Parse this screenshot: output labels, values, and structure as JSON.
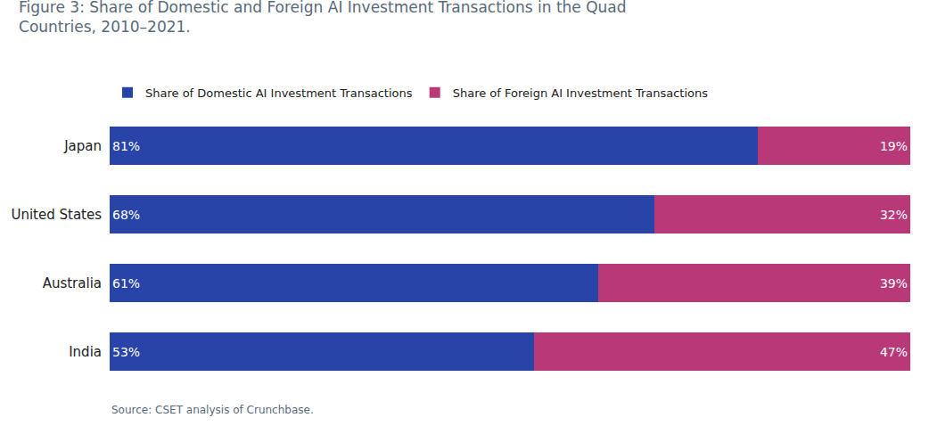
{
  "chart_data": {
    "type": "bar",
    "orientation": "horizontal",
    "stacked": true,
    "title": "Figure 3: Share of Domestic and Foreign AI Investment Transactions in the Quad\nCountries, 2010–2021.",
    "categories": [
      "Japan",
      "United States",
      "Australia",
      "India"
    ],
    "series": [
      {
        "name": "Share of Domestic AI Investment Transactions",
        "color": "#2944A8",
        "values": [
          81,
          68,
          61,
          53
        ],
        "value_labels": [
          "81%",
          "68%",
          "61%",
          "53%"
        ]
      },
      {
        "name": "Share of Foreign AI Investment Transactions",
        "color": "#B83878",
        "values": [
          19,
          32,
          39,
          47
        ],
        "value_labels": [
          "19%",
          "32%",
          "39%",
          "47%"
        ]
      }
    ],
    "xlim": [
      0,
      100
    ],
    "xticks": [],
    "data_labels": true,
    "tick_labels": "y",
    "grid": false,
    "legend": "top",
    "annotations": [
      "Source: CSET analysis of Crunchbase."
    ]
  }
}
